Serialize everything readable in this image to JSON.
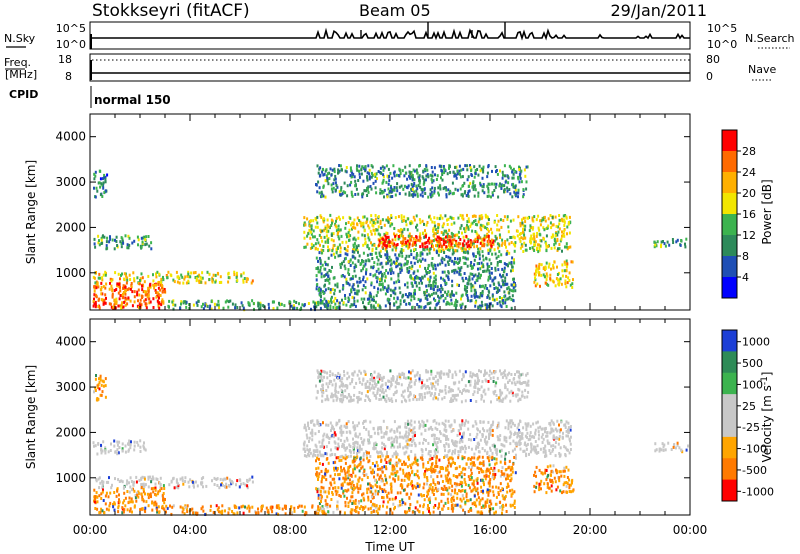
{
  "header": {
    "station": "Stokkseyri (fitACF)",
    "beam": "Beam 05",
    "date": "29/Jan/2011"
  },
  "noise_panel": {
    "left_label": "N.Sky",
    "right_label": "N.Search",
    "ticks": [
      "10^5",
      "10^0"
    ]
  },
  "freq_panel": {
    "left_label_top": "Freq.",
    "left_label_bottom": "[MHz]",
    "right_label": "Nave",
    "left_ticks": [
      "18",
      "8"
    ],
    "right_ticks": [
      "80",
      "0"
    ]
  },
  "cpid_panel": {
    "label": "CPID",
    "mode": "normal 150"
  },
  "colors": {
    "power": [
      "#0000ff",
      "#1f4fb5",
      "#2d8a5a",
      "#3cb34f",
      "#f2e600",
      "#ffb000",
      "#ff6a00",
      "#ff0000"
    ],
    "velocity": [
      "#1c3fd6",
      "#2e8b57",
      "#3cb34f",
      "#c8c8c8",
      "#c8c8c8",
      "#ffa500",
      "#ff7a00",
      "#ff0000"
    ],
    "ground_scatter": "#c8c8c8"
  },
  "chart_data": [
    {
      "type": "heatmap",
      "name": "Power",
      "xlabel": "",
      "ylabel": "Slant Range [km]",
      "x_ticks": [
        "00:00",
        "04:00",
        "08:00",
        "12:00",
        "16:00",
        "20:00",
        "00:00"
      ],
      "x_range_hours": [
        0,
        24
      ],
      "y_ticks": [
        "1000",
        "2000",
        "3000",
        "4000"
      ],
      "y_range_km": [
        180,
        4500
      ],
      "colorbar": {
        "label": "Power [dB]",
        "ticks": [
          "4",
          "8",
          "12",
          "16",
          "20",
          "24",
          "28"
        ],
        "range": [
          0,
          30
        ]
      },
      "regions": [
        {
          "t0": 0.1,
          "t1": 0.7,
          "r0": 2700,
          "r1": 3300,
          "level": 0.25
        },
        {
          "t0": 0.1,
          "t1": 2.5,
          "r0": 1550,
          "r1": 1850,
          "level": 0.35
        },
        {
          "t0": 0.1,
          "t1": 6.5,
          "r0": 800,
          "r1": 1050,
          "level": 0.6
        },
        {
          "t0": 0.1,
          "t1": 3.0,
          "r0": 250,
          "r1": 800,
          "level": 0.85
        },
        {
          "t0": 3.0,
          "t1": 10.0,
          "r0": 220,
          "r1": 420,
          "level": 0.35
        },
        {
          "t0": 8.5,
          "t1": 19.2,
          "r0": 1500,
          "r1": 2300,
          "level": 0.55
        },
        {
          "t0": 11.5,
          "t1": 16.2,
          "r0": 1600,
          "r1": 1850,
          "level": 0.95
        },
        {
          "t0": 9.0,
          "t1": 17.5,
          "r0": 2700,
          "r1": 3400,
          "level": 0.3
        },
        {
          "t0": 17.7,
          "t1": 19.3,
          "r0": 700,
          "r1": 1300,
          "level": 0.65
        },
        {
          "t0": 22.5,
          "t1": 23.9,
          "r0": 1600,
          "r1": 1800,
          "level": 0.35
        },
        {
          "t0": 9.0,
          "t1": 17.0,
          "r0": 250,
          "r1": 1500,
          "level": 0.3
        }
      ]
    },
    {
      "type": "heatmap",
      "name": "Velocity",
      "xlabel": "Time UT",
      "ylabel": "Slant Range [km]",
      "x_ticks": [
        "00:00",
        "04:00",
        "08:00",
        "12:00",
        "16:00",
        "20:00",
        "00:00"
      ],
      "x_range_hours": [
        0,
        24
      ],
      "y_ticks": [
        "1000",
        "2000",
        "3000",
        "4000"
      ],
      "y_range_km": [
        180,
        4500
      ],
      "colorbar": {
        "label": "Velocity [m s^-1]",
        "ticks": [
          "1000",
          "500",
          "100",
          "25",
          "-25",
          "-100",
          "-500",
          "-1000"
        ]
      },
      "regions": [
        {
          "t0": 0.1,
          "t1": 0.6,
          "r0": 2700,
          "r1": 3300,
          "level": 0.75
        },
        {
          "t0": 0.1,
          "t1": 2.2,
          "r0": 1550,
          "r1": 1850,
          "level": 0.3
        },
        {
          "t0": 0.2,
          "t1": 6.5,
          "r0": 800,
          "r1": 1050,
          "level": 0.45
        },
        {
          "t0": 0.1,
          "t1": 3.0,
          "r0": 250,
          "r1": 800,
          "level": 0.8
        },
        {
          "t0": 3.0,
          "t1": 10.0,
          "r0": 220,
          "r1": 420,
          "level": 0.6
        },
        {
          "t0": 8.5,
          "t1": 19.2,
          "r0": 1500,
          "r1": 2300,
          "level": 0.5
        },
        {
          "t0": 9.0,
          "t1": 17.5,
          "r0": 2700,
          "r1": 3400,
          "level": 0.5
        },
        {
          "t0": 17.7,
          "t1": 19.3,
          "r0": 700,
          "r1": 1300,
          "level": 0.8
        },
        {
          "t0": 22.5,
          "t1": 23.9,
          "r0": 1600,
          "r1": 1800,
          "level": 0.5
        },
        {
          "t0": 9.0,
          "t1": 17.0,
          "r0": 250,
          "r1": 1500,
          "level": 0.6
        }
      ]
    }
  ]
}
